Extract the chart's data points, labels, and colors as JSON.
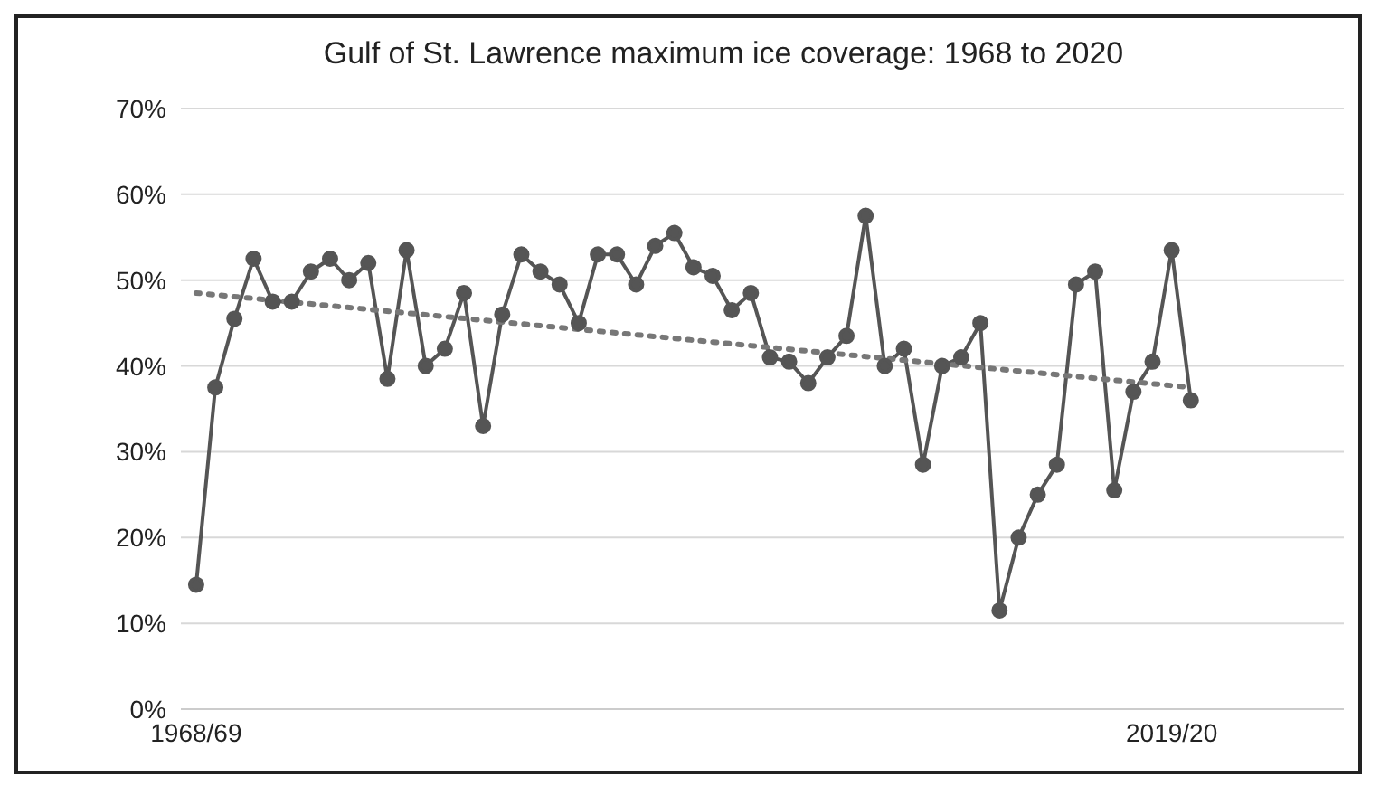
{
  "chart_data": {
    "type": "line",
    "title": "Gulf of St. Lawrence maximum ice coverage: 1968 to 2020",
    "categories": [
      "1968/69",
      null,
      null,
      null,
      null,
      null,
      null,
      null,
      null,
      null,
      null,
      null,
      null,
      null,
      null,
      null,
      null,
      null,
      null,
      null,
      null,
      null,
      null,
      null,
      null,
      null,
      null,
      null,
      null,
      null,
      null,
      null,
      null,
      null,
      null,
      null,
      null,
      null,
      null,
      null,
      null,
      null,
      null,
      null,
      null,
      null,
      null,
      null,
      null,
      null,
      null,
      "2019/20",
      null
    ],
    "series": [
      {
        "color": "#555555",
        "marker": "circle",
        "line_style": "solid",
        "values": [
          14.5,
          37.5,
          45.5,
          52.5,
          47.5,
          47.5,
          51,
          52.5,
          50,
          52,
          38.5,
          53.5,
          40,
          42,
          48.5,
          33,
          46,
          53,
          51,
          49.5,
          45,
          53,
          53,
          49.5,
          54,
          55.5,
          51.5,
          50.5,
          46.5,
          48.5,
          41,
          40.5,
          38,
          41,
          43.5,
          57.5,
          40,
          42,
          28.5,
          40,
          41,
          45,
          11.5,
          20,
          25,
          28.5,
          49.5,
          51,
          25.5,
          37,
          40.5,
          53.5,
          36
        ]
      },
      {
        "type": "line",
        "color": "#777777",
        "marker": "none",
        "line_style": "dotted",
        "values": [
          48.5,
          null,
          null,
          null,
          null,
          null,
          null,
          null,
          null,
          null,
          null,
          null,
          null,
          null,
          null,
          null,
          null,
          null,
          null,
          null,
          null,
          null,
          null,
          null,
          null,
          null,
          null,
          null,
          null,
          null,
          null,
          null,
          null,
          null,
          null,
          null,
          null,
          null,
          null,
          null,
          null,
          null,
          null,
          null,
          null,
          null,
          null,
          null,
          null,
          null,
          null,
          null,
          37.5
        ]
      }
    ],
    "ylim": [
      0,
      70
    ],
    "yticks": [
      {
        "value": 0,
        "label": "0%"
      },
      {
        "value": 10,
        "label": "10%"
      },
      {
        "value": 20,
        "label": "20%"
      },
      {
        "value": 30,
        "label": "30%"
      },
      {
        "value": 40,
        "label": "40%"
      },
      {
        "value": 50,
        "label": "50%"
      },
      {
        "value": 60,
        "label": "60%"
      },
      {
        "value": 70,
        "label": "70%"
      }
    ],
    "grid": "y"
  }
}
